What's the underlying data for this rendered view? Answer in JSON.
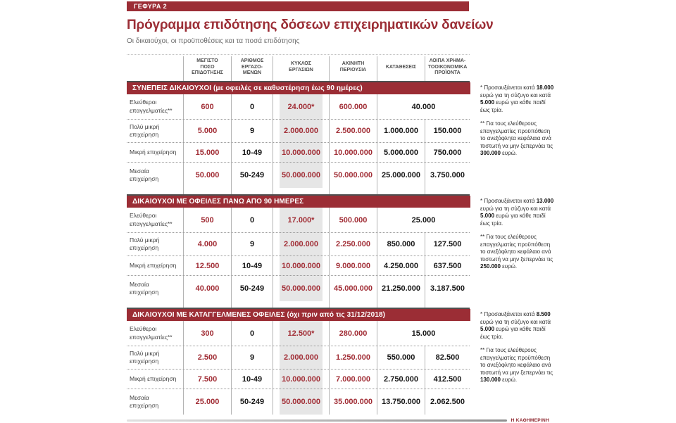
{
  "header": {
    "kicker": "ΓΕΦΥΡΑ 2",
    "title": "Πρόγραμμα επιδότησης δόσεων επιχειρηματικών δανείων",
    "subtitle": "Οι δικαιούχοι, οι προϋποθέσεις και τα ποσά επιδότησης"
  },
  "footer": {
    "source": "Η ΚΑΘΗΜΕΡΙΝΗ"
  },
  "colors": {
    "brand_red": "#9b2d35",
    "value_red": "#a12d35",
    "turnover_band_gray": "#e6e6e6"
  },
  "chart_data": {
    "type": "table",
    "title": "Πρόγραμμα επιδότησης δόσεων επιχειρηματικών δανείων",
    "columns": [
      {
        "lines": [
          "ΜΕΓΙΣΤΟ",
          "ΠΟΣΟ",
          "ΕΠΙΔΟΤΗΣΗΣ"
        ]
      },
      {
        "lines": [
          "ΑΡΙΘΜΟΣ",
          "ΕΡΓΑΖΟ-",
          "ΜΕΝΩΝ"
        ]
      },
      {
        "lines": [
          "ΚΥΚΛΟΣ",
          "ΕΡΓΑΣΙΩΝ"
        ]
      },
      {
        "lines": [
          "ΑΚΙΝΗΤΗ",
          "ΠΕΡΙΟΥΣΙΑ"
        ]
      },
      {
        "lines": [
          "ΚΑΤΑΘΕΣΕΙΣ"
        ]
      },
      {
        "lines": [
          "ΛΟΙΠΑ ΧΡΗΜΑ-",
          "ΤΟΟΙΚΟΝΟΜΙΚΑ",
          "ΠΡΟΪΟΝΤΑ"
        ]
      }
    ],
    "sections": [
      {
        "header": "ΣΥΝΕΠΕΙΣ ΔΙΚΑΙΟΥΧΟΙ (με οφειλές σε καθυστέρηση έως 90 ημέρες)",
        "rows": [
          {
            "label": [
              "Ελεύθεροι",
              "επαγγελματίες**"
            ],
            "values": [
              "600",
              "0",
              "24.000*",
              "600.000"
            ],
            "merged": "40.000"
          },
          {
            "label": [
              "Πολύ μικρή",
              "επιχείρηση"
            ],
            "values": [
              "5.000",
              "9",
              "2.000.000",
              "2.500.000",
              "1.000.000",
              "150.000"
            ]
          },
          {
            "label": [
              "Μικρή επιχείρηση"
            ],
            "values": [
              "15.000",
              "10-49",
              "10.000.000",
              "10.000.000",
              "5.000.000",
              "750.000"
            ]
          },
          {
            "label": [
              "Μεσαία",
              "επιχείρηση"
            ],
            "values": [
              "50.000",
              "50-249",
              "50.000.000",
              "50.000.000",
              "25.000.000",
              "3.750.000"
            ]
          }
        ],
        "footnotes": [
          [
            "* Προσαυξάνεται κατά ",
            {
              "b": "18.000"
            },
            " ευρώ για τη σύζυγο και κατά ",
            {
              "b": "5.000"
            },
            " ευρώ για κάθε παιδί έως τρία."
          ],
          [
            "** Για τους ελεύθε­ρους επαγγελματίες προϋπόθεση το ανεξόφλητα κεφάλαια ανά πιστωτή να μην ξεπερνάει τις ",
            {
              "b": "300.000"
            },
            " ευρώ."
          ]
        ]
      },
      {
        "header": "ΔΙΚΑΙΟΥΧΟΙ ΜΕ ΟΦΕΙΛΕΣ ΠΑΝΩ ΑΠΟ 90 ΗΜΕΡΕΣ",
        "rows": [
          {
            "label": [
              "Ελεύθεροι",
              "επαγγελματίες**"
            ],
            "values": [
              "500",
              "0",
              "17.000*",
              "500.000"
            ],
            "merged": "25.000"
          },
          {
            "label": [
              "Πολύ μικρή",
              "επιχείρηση"
            ],
            "values": [
              "4.000",
              "9",
              "2.000.000",
              "2.250.000",
              "850.000",
              "127.500"
            ]
          },
          {
            "label": [
              "Μικρή επιχείρηση"
            ],
            "values": [
              "12.500",
              "10-49",
              "10.000.000",
              "9.000.000",
              "4.250.000",
              "637.500"
            ]
          },
          {
            "label": [
              "Μεσαία",
              "επιχείρηση"
            ],
            "values": [
              "40.000",
              "50-249",
              "50.000.000",
              "45.000.000",
              "21.250.000",
              "3.187.500"
            ]
          }
        ],
        "footnotes": [
          [
            "* Προσαυξάνεται κατά ",
            {
              "b": "13.000"
            },
            " ευρώ για τη σύζυγο και κατά ",
            {
              "b": "5.000"
            },
            " ευρώ για κάθε παιδί έως τρία."
          ],
          [
            "** Για τους ελεύθε­ρους επαγγελματίες προϋπόθεση το ανεξόφλητο κεφάλαιο ανά πιστωτή να μην ξεπερνάει τις ",
            {
              "b": "250.000"
            },
            " ευρώ."
          ]
        ]
      },
      {
        "header": "ΔΙΚΑΙΟΥΧΟΙ ΜΕ ΚΑΤΑΓΓΕΛΜΕΝΕΣ ΟΦΕΙΛΕΣ (όχι πριν από τις 31/12/2018)",
        "rows": [
          {
            "label": [
              "Ελεύθεροι",
              "επαγγελματίες**"
            ],
            "values": [
              "300",
              "0",
              "12.500*",
              "280.000"
            ],
            "merged": "15.000"
          },
          {
            "label": [
              "Πολύ μικρή",
              "επιχείρηση"
            ],
            "values": [
              "2.500",
              "9",
              "2.000.000",
              "1.250.000",
              "550.000",
              "82.500"
            ]
          },
          {
            "label": [
              "Μικρή επιχείρηση"
            ],
            "values": [
              "7.500",
              "10-49",
              "10.000.000",
              "7.000.000",
              "2.750.000",
              "412.500"
            ]
          },
          {
            "label": [
              "Μεσαία",
              "επιχείρηση"
            ],
            "values": [
              "25.000",
              "50-249",
              "50.000.000",
              "35.000.000",
              "13.750.000",
              "2.062.500"
            ]
          }
        ],
        "footnotes": [
          [
            "* Προσαυξάνεται κατά ",
            {
              "b": "8.500"
            },
            " ευρώ για τη σύζυγο και κατά ",
            {
              "b": "5.000"
            },
            " ευρώ για κάθε παιδί έως τρία."
          ],
          [
            "** Για τους ελεύθε­ρους επαγγελματίες προϋπόθεση το ανεξόφλητο κεφάλαιο ανά πιστωτή να μην ξεπερνάει τις ",
            {
              "b": "130.000"
            },
            " ευρώ."
          ]
        ]
      }
    ]
  }
}
